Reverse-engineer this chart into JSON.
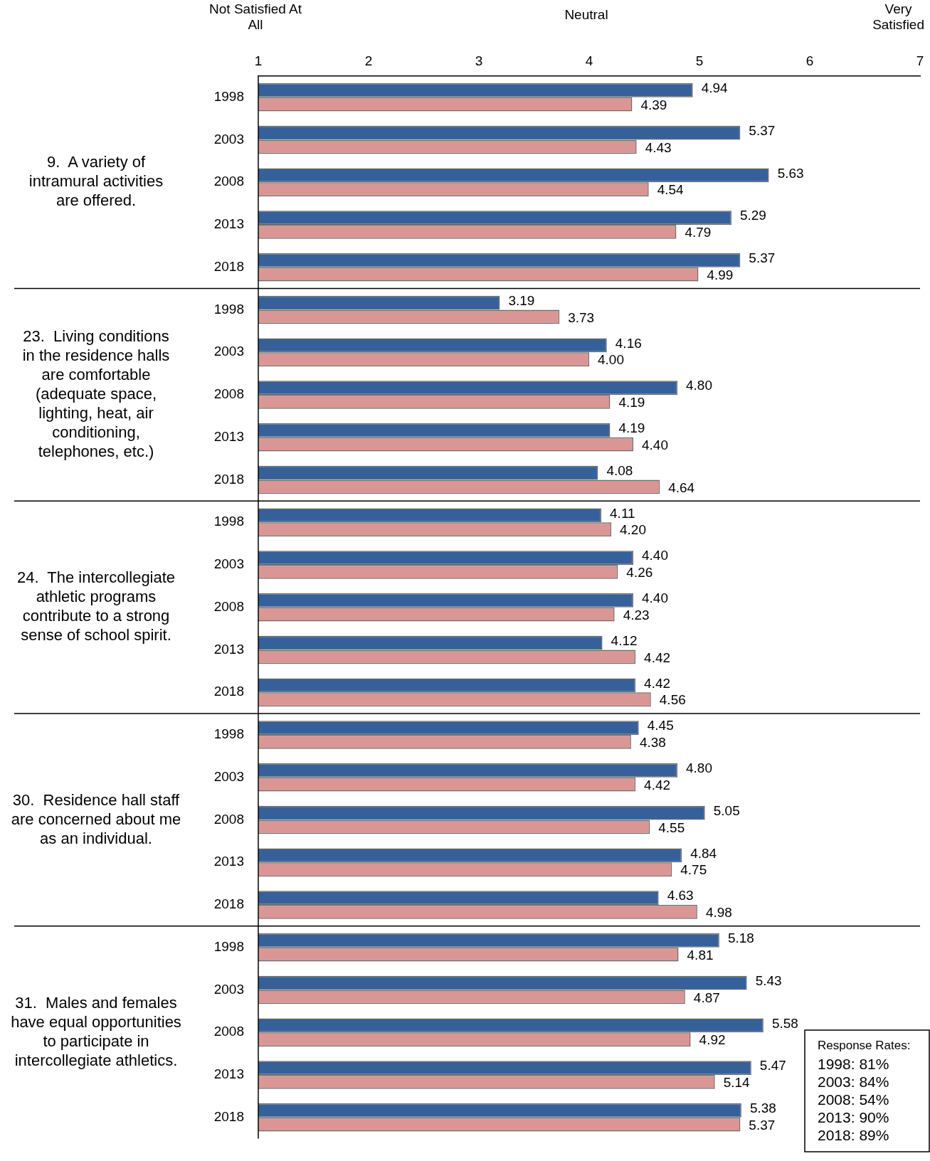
{
  "chart_data": {
    "type": "bar",
    "orientation": "horizontal",
    "categories": [
      "1998",
      "2003",
      "2008",
      "2013",
      "2018",
      "1998",
      "2003",
      "2008",
      "2013",
      "2018",
      "1998",
      "2003",
      "2008",
      "2013",
      "2018",
      "1998",
      "2003",
      "2008",
      "2013",
      "2018",
      "1998",
      "2003",
      "2008",
      "2013",
      "2018"
    ],
    "series": [
      {
        "color": "#35609a",
        "values": [
          4.94,
          5.37,
          5.63,
          5.29,
          5.37,
          3.19,
          4.16,
          4.8,
          4.19,
          4.08,
          4.11,
          4.4,
          4.4,
          4.12,
          4.42,
          4.45,
          4.8,
          5.05,
          4.84,
          4.63,
          5.18,
          5.43,
          5.58,
          5.47,
          5.38
        ],
        "value_labels": [
          "4.94",
          "5.37",
          "5.63",
          "5.29",
          "5.37",
          "3.19",
          "4.16",
          "4.80",
          "4.19",
          "4.08",
          "4.11",
          "4.40",
          "4.40",
          "4.12",
          "4.42",
          "4.45",
          "4.80",
          "5.05",
          "4.84",
          "4.63",
          "5.18",
          "5.43",
          "5.58",
          "5.47",
          "5.38"
        ]
      },
      {
        "color": "#d99694",
        "values": [
          4.39,
          4.43,
          4.54,
          4.79,
          4.99,
          3.73,
          4.0,
          4.19,
          4.4,
          4.64,
          4.2,
          4.26,
          4.23,
          4.42,
          4.56,
          4.38,
          4.42,
          4.55,
          4.75,
          4.98,
          4.81,
          4.87,
          4.92,
          5.14,
          5.37
        ],
        "value_labels": [
          "4.39",
          "4.43",
          "4.54",
          "4.79",
          "4.99",
          "3.73",
          "4.00",
          "4.19",
          "4.40",
          "4.64",
          "4.20",
          "4.26",
          "4.23",
          "4.42",
          "4.56",
          "4.38",
          "4.42",
          "4.55",
          "4.75",
          "4.98",
          "4.81",
          "4.87",
          "4.92",
          "5.14",
          "5.37"
        ]
      }
    ],
    "xlim": [
      1,
      7
    ],
    "xticks": [
      1,
      2,
      3,
      4,
      5,
      6,
      7
    ],
    "grid": false,
    "legend": false,
    "annotations": [
      "9.  A variety of\nintramural activities\nare offered.",
      "23.  Living conditions\nin the residence halls\nare comfortable\n(adequate space,\nlighting, heat, air\nconditioning,\ntelephones, etc.)",
      "24.  The intercollegiate\nathletic programs\ncontribute to a strong\nsense of school spirit.",
      "30.  Residence hall staff\nare concerned about me\nas an individual.",
      "31.  Males and females\nhave equal opportunities\nto participate in\nintercollegiate athletics.",
      "Not Satisfied At\nAll",
      "Neutral",
      "Very\nSatisfied",
      "Response Rates:\n1998: 81%\n2003: 84%\n2008: 54%\n2013: 90%\n2018: 89%"
    ]
  }
}
